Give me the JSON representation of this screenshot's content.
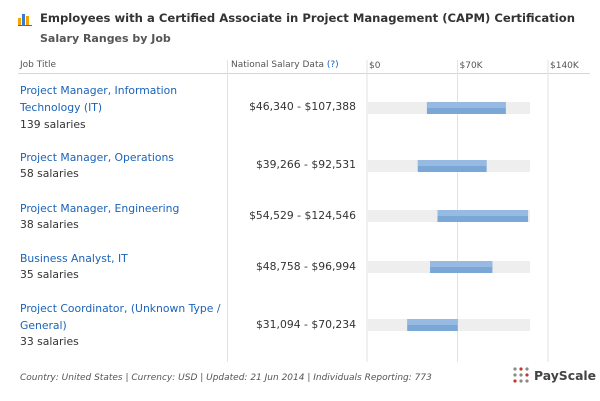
{
  "header": {
    "title": "Employees with a Certified Associate in Project Management (CAPM) Certification",
    "subtitle": "Salary Ranges by Job",
    "logo_icon": "bar-chart-icon"
  },
  "table": {
    "col_job": "Job Title",
    "col_salary": "National Salary Data",
    "col_salary_help": "(?)"
  },
  "rows": [
    {
      "job": "Project Manager, Information Technology (IT)",
      "count": "139 salaries",
      "range": "$46,340 - $107,388"
    },
    {
      "job": "Project Manager, Operations",
      "count": "58 salaries",
      "range": "$39,266 - $92,531"
    },
    {
      "job": "Project Manager, Engineering",
      "count": "38 salaries",
      "range": "$54,529 - $124,546"
    },
    {
      "job": "Business Analyst, IT",
      "count": "35 salaries",
      "range": "$48,758 - $96,994"
    },
    {
      "job": "Project Coordinator, (Unknown Type / General)",
      "count": "33 salaries",
      "range": "$31,094 - $70,234"
    }
  ],
  "chart_data": {
    "type": "bar",
    "orientation": "horizontal-range",
    "categories": [
      "Project Manager, Information Technology (IT)",
      "Project Manager, Operations",
      "Project Manager, Engineering",
      "Business Analyst, IT",
      "Project Coordinator, (Unknown Type / General)"
    ],
    "ranges": [
      [
        46340,
        107388
      ],
      [
        39266,
        92531
      ],
      [
        54529,
        124546
      ],
      [
        48758,
        96994
      ],
      [
        31094,
        70234
      ]
    ],
    "x_ticks": [
      0,
      70000,
      140000
    ],
    "x_tick_labels": [
      "$0",
      "$70K",
      "$140K"
    ],
    "xlim": [
      0,
      140000
    ],
    "grid": true,
    "colors": {
      "bar": "#7aa7d6",
      "bar_top": "#a9c7e8",
      "track": "#eeeeee"
    }
  },
  "footer": {
    "text": "Country: United States | Currency: USD | Updated: 21 Jun 2014 | Individuals Reporting: 773",
    "brand": "PayScale",
    "brand_icon": "payscale-dots-icon"
  }
}
